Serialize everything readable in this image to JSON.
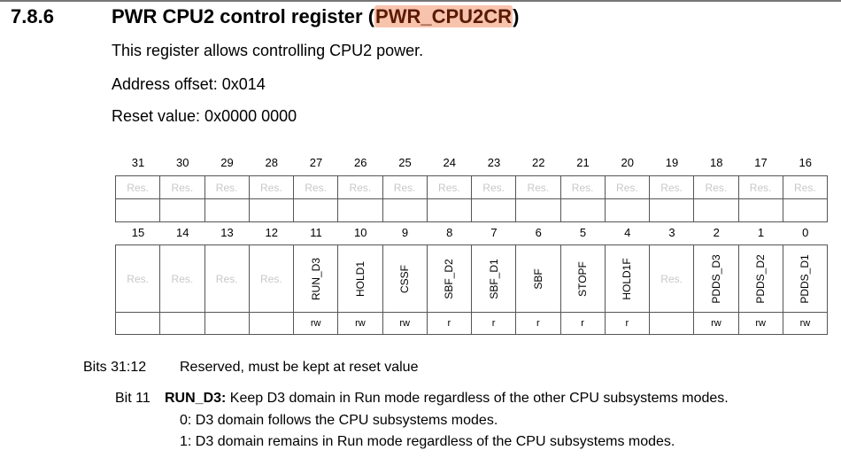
{
  "section": {
    "number": "7.8.6",
    "title_prefix": "PWR CPU2 control register (",
    "title_highlight": "PWR_CPU2CR",
    "title_suffix": ")",
    "highlight_color": "#f8c3ad"
  },
  "intro": "This register allows controlling CPU2 power.",
  "address_offset": "Address offset: 0x014",
  "reset_value": "Reset value: 0x0000 0000",
  "register": {
    "upper": {
      "bits": [
        "31",
        "30",
        "29",
        "28",
        "27",
        "26",
        "25",
        "24",
        "23",
        "22",
        "21",
        "20",
        "19",
        "18",
        "17",
        "16"
      ],
      "fields": [
        "Res.",
        "Res.",
        "Res.",
        "Res.",
        "Res.",
        "Res.",
        "Res.",
        "Res.",
        "Res.",
        "Res.",
        "Res.",
        "Res.",
        "Res.",
        "Res.",
        "Res.",
        "Res."
      ],
      "access": [
        "",
        "",
        "",
        "",
        "",
        "",
        "",
        "",
        "",
        "",
        "",
        "",
        "",
        "",
        "",
        ""
      ]
    },
    "lower": {
      "bits": [
        "15",
        "14",
        "13",
        "12",
        "11",
        "10",
        "9",
        "8",
        "7",
        "6",
        "5",
        "4",
        "3",
        "2",
        "1",
        "0"
      ],
      "fields": [
        "Res.",
        "Res.",
        "Res.",
        "Res.",
        "RUN_D3",
        "HOLD1",
        "CSSF",
        "SBF_D2",
        "SBF_D1",
        "SBF",
        "STOPF",
        "HOLD1F",
        "Res.",
        "PDDS_D3",
        "PDDS_D2",
        "PDDS_D1"
      ],
      "access": [
        "",
        "",
        "",
        "",
        "rw",
        "rw",
        "rw",
        "r",
        "r",
        "r",
        "r",
        "r",
        "",
        "rw",
        "rw",
        "rw"
      ]
    }
  },
  "descriptions": {
    "reserved": {
      "bits": "Bits 31:12",
      "text": "Reserved, must be kept at reset value"
    },
    "bit11": {
      "bits": "Bit 11",
      "name": "RUN_D3:",
      "text": " Keep D3 domain in Run mode regardless of the other CPU subsystems modes.",
      "values": [
        "0: D3 domain follows the CPU subsystems modes.",
        "1: D3 domain remains in Run mode regardless of the CPU subsystems modes."
      ]
    }
  }
}
